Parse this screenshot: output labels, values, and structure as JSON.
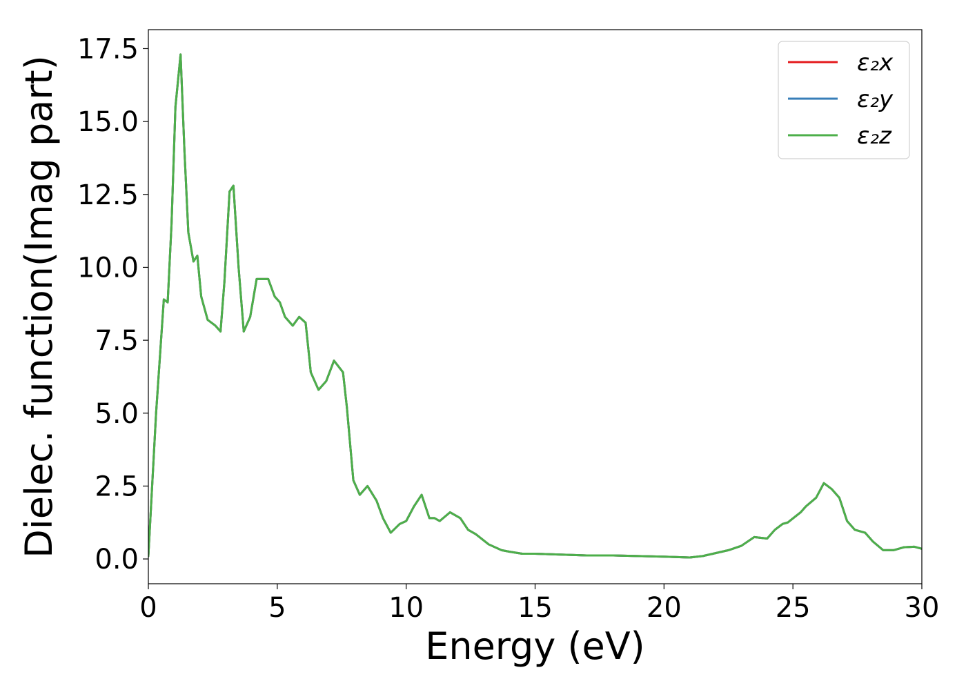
{
  "chart_data": {
    "type": "line",
    "xlabel": "Energy (eV)",
    "ylabel": "Dielec. function(Imag part)",
    "xlim": [
      0,
      30
    ],
    "ylim": [
      -0.85,
      18.15
    ],
    "xticks": [
      0,
      5,
      10,
      15,
      20,
      25,
      30
    ],
    "xtick_labels": [
      "0",
      "5",
      "10",
      "15",
      "20",
      "25",
      "30"
    ],
    "yticks": [
      0,
      2.5,
      5,
      7.5,
      10,
      12.5,
      15,
      17.5
    ],
    "ytick_labels": [
      "0.0",
      "2.5",
      "5.0",
      "7.5",
      "10.0",
      "12.5",
      "15.0",
      "17.5"
    ],
    "grid": false,
    "legend_position": "top-right",
    "x": [
      0,
      0.3,
      0.6,
      0.75,
      0.9,
      1.05,
      1.25,
      1.4,
      1.55,
      1.75,
      1.9,
      2.05,
      2.3,
      2.6,
      2.8,
      2.95,
      3.15,
      3.3,
      3.5,
      3.7,
      3.95,
      4.2,
      4.5,
      4.65,
      4.9,
      5.1,
      5.3,
      5.6,
      5.85,
      6.1,
      6.3,
      6.6,
      6.9,
      7.2,
      7.55,
      7.7,
      7.95,
      8.2,
      8.5,
      8.85,
      9.1,
      9.4,
      9.75,
      10.0,
      10.3,
      10.6,
      10.9,
      11.1,
      11.3,
      11.7,
      12.1,
      12.4,
      12.7,
      13.2,
      13.7,
      14.0,
      14.5,
      15.0,
      16.0,
      17.0,
      18.0,
      19.0,
      20.0,
      21.0,
      21.5,
      22.0,
      22.5,
      23.0,
      23.5,
      24.0,
      24.3,
      24.6,
      24.8,
      25.3,
      25.5,
      25.9,
      26.2,
      26.5,
      26.8,
      27.1,
      27.4,
      27.8,
      28.1,
      28.5,
      28.9,
      29.3,
      29.7,
      30.0
    ],
    "series": [
      {
        "name": "ε₂x",
        "color": "#e41a1c",
        "values": [
          0.1,
          5.0,
          8.9,
          8.8,
          11.5,
          15.5,
          17.3,
          14.0,
          11.2,
          10.2,
          10.4,
          9.0,
          8.2,
          8.0,
          7.8,
          9.5,
          12.6,
          12.8,
          10.0,
          7.8,
          8.3,
          9.6,
          9.6,
          9.6,
          9.0,
          8.8,
          8.3,
          8.0,
          8.3,
          8.1,
          6.4,
          5.8,
          6.1,
          6.8,
          6.4,
          5.2,
          2.7,
          2.2,
          2.5,
          2.0,
          1.4,
          0.9,
          1.2,
          1.3,
          1.8,
          2.2,
          1.4,
          1.4,
          1.3,
          1.6,
          1.4,
          1.0,
          0.85,
          0.5,
          0.3,
          0.25,
          0.18,
          0.18,
          0.15,
          0.12,
          0.12,
          0.1,
          0.08,
          0.05,
          0.1,
          0.2,
          0.3,
          0.45,
          0.75,
          0.7,
          1.0,
          1.2,
          1.25,
          1.6,
          1.8,
          2.1,
          2.6,
          2.4,
          2.1,
          1.3,
          1.0,
          0.9,
          0.6,
          0.3,
          0.3,
          0.4,
          0.42,
          0.35
        ]
      },
      {
        "name": "ε₂y",
        "color": "#377eb8",
        "values": [
          0.1,
          5.0,
          8.9,
          8.8,
          11.5,
          15.5,
          17.3,
          14.0,
          11.2,
          10.2,
          10.4,
          9.0,
          8.2,
          8.0,
          7.8,
          9.5,
          12.6,
          12.8,
          10.0,
          7.8,
          8.3,
          9.6,
          9.6,
          9.6,
          9.0,
          8.8,
          8.3,
          8.0,
          8.3,
          8.1,
          6.4,
          5.8,
          6.1,
          6.8,
          6.4,
          5.2,
          2.7,
          2.2,
          2.5,
          2.0,
          1.4,
          0.9,
          1.2,
          1.3,
          1.8,
          2.2,
          1.4,
          1.4,
          1.3,
          1.6,
          1.4,
          1.0,
          0.85,
          0.5,
          0.3,
          0.25,
          0.18,
          0.18,
          0.15,
          0.12,
          0.12,
          0.1,
          0.08,
          0.05,
          0.1,
          0.2,
          0.3,
          0.45,
          0.75,
          0.7,
          1.0,
          1.2,
          1.25,
          1.6,
          1.8,
          2.1,
          2.6,
          2.4,
          2.1,
          1.3,
          1.0,
          0.9,
          0.6,
          0.3,
          0.3,
          0.4,
          0.42,
          0.35
        ]
      },
      {
        "name": "ε₂z",
        "color": "#4daf4a",
        "values": [
          0.1,
          5.0,
          8.9,
          8.8,
          11.5,
          15.5,
          17.3,
          14.0,
          11.2,
          10.2,
          10.4,
          9.0,
          8.2,
          8.0,
          7.8,
          9.5,
          12.6,
          12.8,
          10.0,
          7.8,
          8.3,
          9.6,
          9.6,
          9.6,
          9.0,
          8.8,
          8.3,
          8.0,
          8.3,
          8.1,
          6.4,
          5.8,
          6.1,
          6.8,
          6.4,
          5.2,
          2.7,
          2.2,
          2.5,
          2.0,
          1.4,
          0.9,
          1.2,
          1.3,
          1.8,
          2.2,
          1.4,
          1.4,
          1.3,
          1.6,
          1.4,
          1.0,
          0.85,
          0.5,
          0.3,
          0.25,
          0.18,
          0.18,
          0.15,
          0.12,
          0.12,
          0.1,
          0.08,
          0.05,
          0.1,
          0.2,
          0.3,
          0.45,
          0.75,
          0.7,
          1.0,
          1.2,
          1.25,
          1.6,
          1.8,
          2.1,
          2.6,
          2.4,
          2.1,
          1.3,
          1.0,
          0.9,
          0.6,
          0.3,
          0.3,
          0.4,
          0.42,
          0.35
        ]
      }
    ]
  }
}
